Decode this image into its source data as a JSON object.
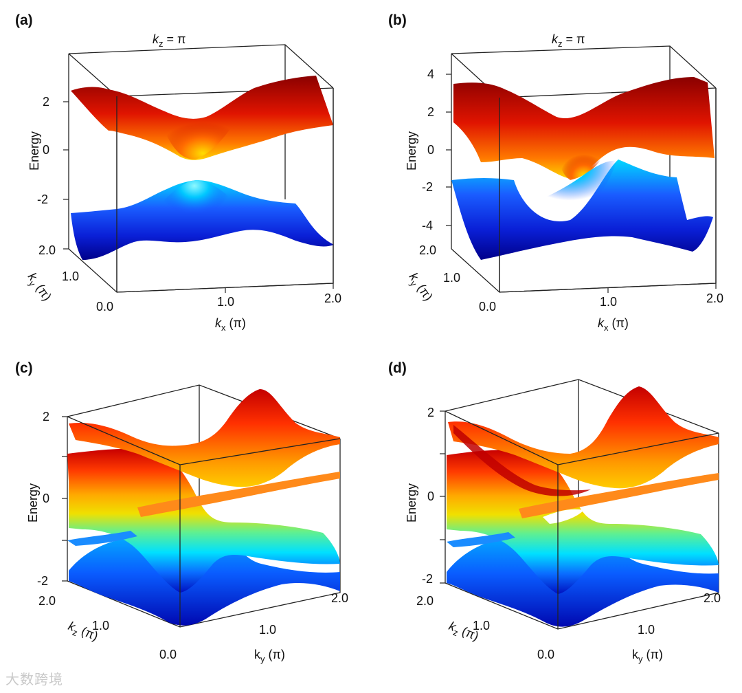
{
  "watermark": "大数跨境",
  "colors": {
    "hot_top": "#7a0000",
    "hot_mid": "#ff2a00",
    "hot_light": "#ffd200",
    "cold_light": "#00e5ff",
    "cold_mid": "#0a3cff",
    "cold_dark": "#00008a"
  },
  "chart_data": [
    {
      "id": "a",
      "type": "surface3d",
      "panel_label": "(a)",
      "title_var": "k",
      "title_sub": "z",
      "title_rest": " = π",
      "zlabel": "Energy",
      "xlabel_var": "k",
      "xlabel_sub": "x",
      "xlabel_rest": " (π)",
      "ylabel_var": "k",
      "ylabel_sub": "y",
      "ylabel_rest": " (π)",
      "xlim": [
        0,
        2
      ],
      "ylim": [
        0,
        2
      ],
      "zlim": [
        -4,
        4
      ],
      "xticks": [
        "0.0",
        "1.0",
        "2.0"
      ],
      "yticks": [
        "0.0",
        "1.0",
        "2.0"
      ],
      "zticks": [
        "-2",
        "0",
        "2"
      ],
      "surfaces": [
        {
          "band": "upper",
          "min_energy": 0.2,
          "max_energy": 2.6
        },
        {
          "band": "lower",
          "min_energy": -3.8,
          "max_energy": -1.3
        }
      ]
    },
    {
      "id": "b",
      "type": "surface3d",
      "panel_label": "(b)",
      "title_var": "k",
      "title_sub": "z",
      "title_rest": " = π",
      "zlabel": "Energy",
      "xlabel_var": "k",
      "xlabel_sub": "x",
      "xlabel_rest": " (π)",
      "ylabel_var": "k",
      "ylabel_sub": "y",
      "ylabel_rest": " (π)",
      "xlim": [
        0,
        2
      ],
      "ylim": [
        0,
        2
      ],
      "zlim": [
        -5,
        5
      ],
      "xticks": [
        "0.0",
        "1.0",
        "2.0"
      ],
      "yticks": [
        "0.0",
        "1.0",
        "2.0"
      ],
      "zticks": [
        "-4",
        "-2",
        "0",
        "2",
        "4"
      ],
      "surfaces": [
        {
          "band": "upper",
          "min_energy": -0.3,
          "max_energy": 4.0
        },
        {
          "band": "lower",
          "min_energy": -4.8,
          "max_energy": -0.4
        }
      ]
    },
    {
      "id": "c",
      "type": "surface3d",
      "panel_label": "(c)",
      "zlabel": "Energy",
      "xlabel_var": "k",
      "xlabel_sub": "y",
      "xlabel_rest": " (π)",
      "ylabel_var": "k",
      "ylabel_sub": "z",
      "ylabel_rest": " (π)",
      "xlim": [
        0,
        2
      ],
      "ylim": [
        0,
        2
      ],
      "zlim": [
        -2,
        2
      ],
      "xticks": [
        "0.0",
        "1.0",
        "2.0"
      ],
      "yticks": [
        "0.0",
        "1.0",
        "2.0"
      ],
      "zticks": [
        "-2",
        "0",
        "2"
      ],
      "surfaces": [
        {
          "band": "upper",
          "min_energy": 0.0,
          "max_energy": 2.0
        },
        {
          "band": "lower",
          "min_energy": -2.0,
          "max_energy": 0.0
        }
      ]
    },
    {
      "id": "d",
      "type": "surface3d",
      "panel_label": "(d)",
      "zlabel": "Energy",
      "xlabel_var": "k",
      "xlabel_sub": "y",
      "xlabel_rest": " (π)",
      "ylabel_var": "k",
      "ylabel_sub": "z",
      "ylabel_rest": " (π)",
      "xlim": [
        0,
        2
      ],
      "ylim": [
        0,
        2
      ],
      "zlim": [
        -2,
        2
      ],
      "xticks": [
        "0.0",
        "1.0",
        "2.0"
      ],
      "yticks": [
        "0.0",
        "1.0",
        "2.0"
      ],
      "zticks": [
        "-2",
        "0",
        "2"
      ],
      "surfaces": [
        {
          "band": "upper",
          "min_energy": 0.0,
          "max_energy": 2.0
        },
        {
          "band": "lower",
          "min_energy": -2.0,
          "max_energy": 0.0
        }
      ]
    }
  ]
}
